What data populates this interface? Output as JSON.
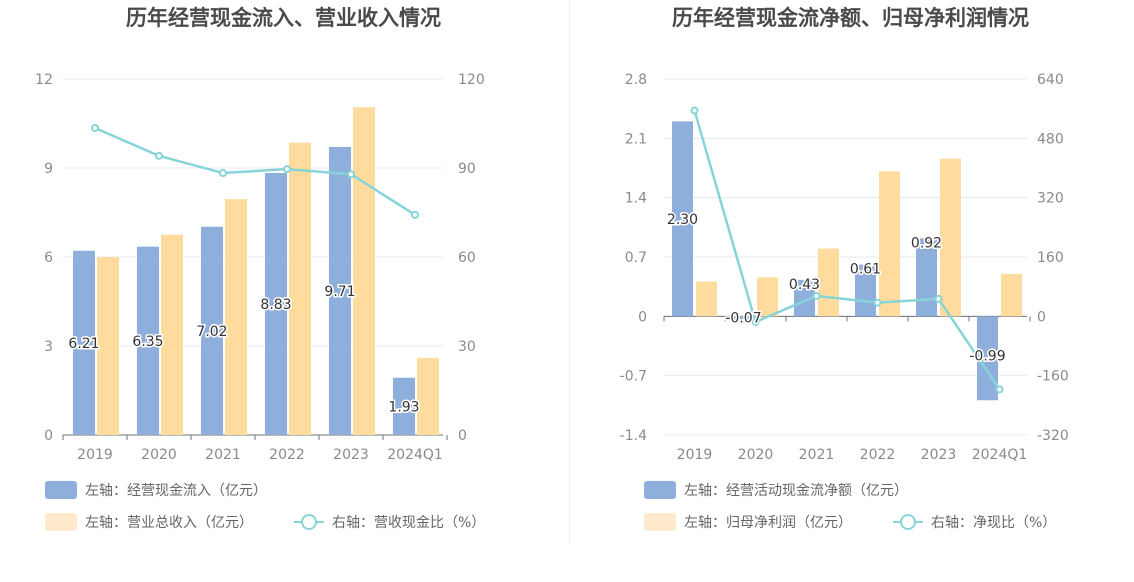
{
  "colors": {
    "bar_a": "#8eaedb",
    "bar_b": "#ffdc9e",
    "legend_bar_b": "#ffeacb",
    "line": "#86d4d8",
    "grid": "#e6e8f0"
  },
  "chart_data": [
    {
      "type": "bar",
      "title": "历年经营现金流入、营业收入情况",
      "categories": [
        "2019",
        "2020",
        "2021",
        "2022",
        "2023",
        "2024Q1"
      ],
      "left_axis": {
        "min": 0,
        "max": 12,
        "ticks": [
          "0",
          "3",
          "6",
          "9",
          "12"
        ]
      },
      "right_axis": {
        "min": 0,
        "max": 120,
        "ticks": [
          "0",
          "30",
          "60",
          "90",
          "120"
        ]
      },
      "series": [
        {
          "name": "左轴：经营现金流入（亿元）",
          "kind": "bar",
          "axis": "left",
          "values": [
            6.21,
            6.35,
            7.02,
            8.83,
            9.71,
            1.93
          ],
          "labels": [
            "6.21",
            "6.35",
            "7.02",
            "8.83",
            "9.71",
            "1.93"
          ]
        },
        {
          "name": "左轴：营业总收入（亿元）",
          "kind": "bar",
          "axis": "left",
          "values": [
            6.0,
            6.75,
            7.95,
            9.85,
            11.05,
            2.6
          ]
        },
        {
          "name": "右轴：营收现金比（%）",
          "kind": "line",
          "axis": "right",
          "values": [
            103.5,
            94.1,
            88.3,
            89.6,
            87.9,
            74.2
          ]
        }
      ],
      "legend_placement": "bottom"
    },
    {
      "type": "bar",
      "title": "历年经营现金流净额、归母净利润情况",
      "categories": [
        "2019",
        "2020",
        "2021",
        "2022",
        "2023",
        "2024Q1"
      ],
      "left_axis": {
        "min": -1.4,
        "max": 2.8,
        "ticks": [
          "-1.4",
          "-0.7",
          "0",
          "0.7",
          "1.4",
          "2.1",
          "2.8"
        ]
      },
      "right_axis": {
        "min": -320,
        "max": 640,
        "ticks": [
          "-320",
          "-160",
          "0",
          "160",
          "320",
          "480",
          "640"
        ]
      },
      "series": [
        {
          "name": "左轴：经营活动现金流净额（亿元）",
          "kind": "bar",
          "axis": "left",
          "values": [
            2.3,
            -0.07,
            0.43,
            0.61,
            0.92,
            -0.99
          ],
          "labels": [
            "2.30",
            "-0.07",
            "0.43",
            "0.61",
            "0.92",
            "-0.99"
          ]
        },
        {
          "name": "左轴：归母净利润（亿元）",
          "kind": "bar",
          "axis": "left",
          "values": [
            0.41,
            0.46,
            0.8,
            1.71,
            1.86,
            0.5
          ]
        },
        {
          "name": "右轴：净现比（%）",
          "kind": "line",
          "axis": "right",
          "values": [
            555,
            -15,
            55,
            37,
            47,
            -197
          ]
        }
      ],
      "legend_placement": "bottom"
    }
  ]
}
